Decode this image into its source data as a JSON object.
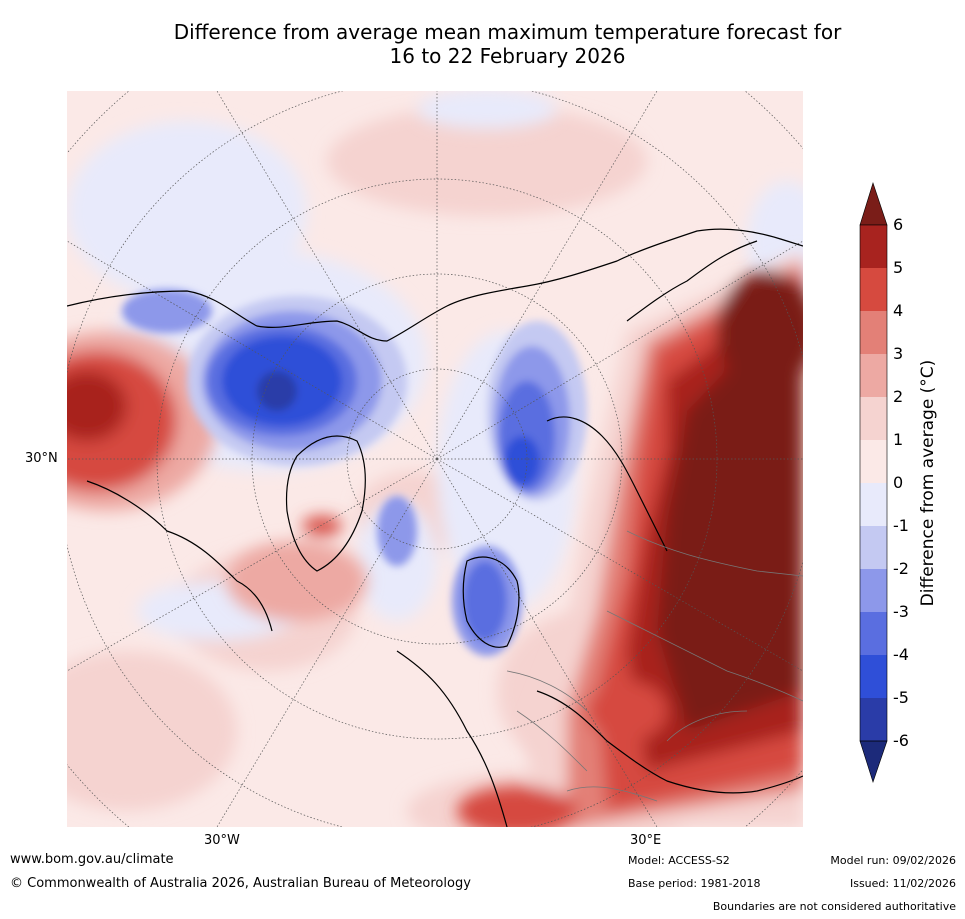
{
  "title": {
    "line1": "Difference from average mean maximum temperature forecast for",
    "line2": "16 to 22 February 2026"
  },
  "map": {
    "lat_label": "30°N",
    "lon_labels": [
      "30°W",
      "30°E"
    ]
  },
  "colorbar": {
    "label": "Difference from average (°C)",
    "ticks": [
      "6",
      "5",
      "4",
      "3",
      "2",
      "1",
      "0",
      "-1",
      "-2",
      "-3",
      "-4",
      "-5",
      "-6"
    ],
    "colors": {
      "gt6": "#7a1d18",
      "5to6": "#a8231f",
      "4to5": "#d64a3f",
      "3to4": "#e38077",
      "2to3": "#eda9a3",
      "1to2": "#f5d3d0",
      "0to1": "#fbe9e7",
      "m1to0": "#e8eafb",
      "m2tom1": "#c4c9f2",
      "m3tom2": "#8d98ea",
      "m4tom3": "#5a6ee0",
      "m5tom4": "#2f4fd8",
      "m6tom5": "#2a3ca8",
      "ltm6": "#1c2a7a"
    }
  },
  "footer": {
    "website": "www.bom.gov.au/climate",
    "copyright": "© Commonwealth of Australia 2026, Australian Bureau of Meteorology",
    "model": "Model: ACCESS-S2",
    "base_period": "Base period: 1981-2018",
    "model_run": "Model run: 09/02/2026",
    "issued": "Issued: 11/02/2026",
    "disclaimer": "Boundaries are not considered authoritative"
  }
}
